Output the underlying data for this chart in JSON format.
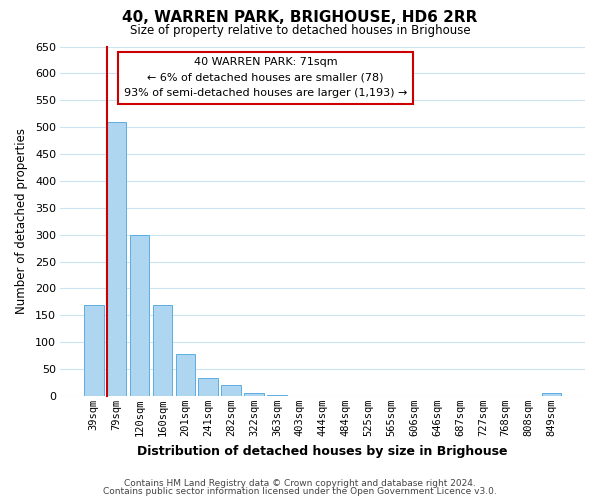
{
  "title": "40, WARREN PARK, BRIGHOUSE, HD6 2RR",
  "subtitle": "Size of property relative to detached houses in Brighouse",
  "xlabel": "Distribution of detached houses by size in Brighouse",
  "ylabel": "Number of detached properties",
  "bar_labels": [
    "39sqm",
    "79sqm",
    "120sqm",
    "160sqm",
    "201sqm",
    "241sqm",
    "282sqm",
    "322sqm",
    "363sqm",
    "403sqm",
    "444sqm",
    "484sqm",
    "525sqm",
    "565sqm",
    "606sqm",
    "646sqm",
    "687sqm",
    "727sqm",
    "768sqm",
    "808sqm",
    "849sqm"
  ],
  "bar_heights": [
    170,
    510,
    300,
    170,
    78,
    33,
    20,
    5,
    2,
    0,
    0,
    0,
    0,
    0,
    0,
    0,
    0,
    0,
    0,
    0,
    5
  ],
  "bar_color": "#aed6f1",
  "bar_edge_color": "#5dade2",
  "ylim": [
    0,
    650
  ],
  "yticks": [
    0,
    50,
    100,
    150,
    200,
    250,
    300,
    350,
    400,
    450,
    500,
    550,
    600,
    650
  ],
  "annotation_title": "40 WARREN PARK: 71sqm",
  "annotation_line1": "← 6% of detached houses are smaller (78)",
  "annotation_line2": "93% of semi-detached houses are larger (1,193) →",
  "annotation_box_color": "#ffffff",
  "annotation_box_edge": "#cc0000",
  "vline_color": "#cc0000",
  "footer1": "Contains HM Land Registry data © Crown copyright and database right 2024.",
  "footer2": "Contains public sector information licensed under the Open Government Licence v3.0.",
  "background_color": "#ffffff",
  "grid_color": "#cce4f0"
}
